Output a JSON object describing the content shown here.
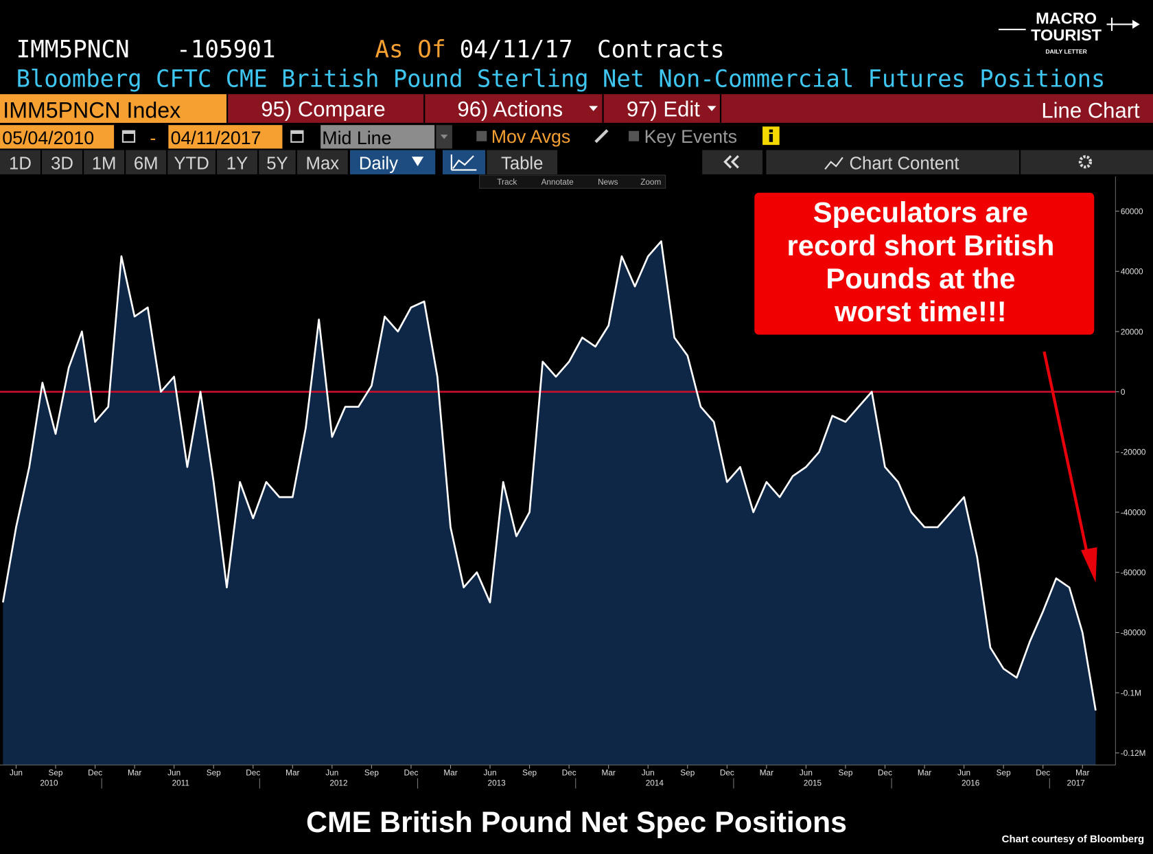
{
  "header": {
    "ticker": "IMM5PNCN",
    "last": -105901,
    "as_of_label": "As Of",
    "as_of": "04/11/17",
    "units": "Contracts",
    "description": "Bloomberg CFTC CME British Pound Sterling Net Non-Commercial Futures Positions"
  },
  "toolbar": {
    "security": "IMM5PNCN Index",
    "compare": "95) Compare",
    "actions": "96) Actions",
    "edit": "97) Edit",
    "chart_type": "Line Chart"
  },
  "controls": {
    "start_date": "05/04/2010",
    "dash": "-",
    "end_date": "04/11/2017",
    "line_mode": "Mid Line",
    "mov_avgs": "Mov Avgs",
    "key_events": "Key Events"
  },
  "periods": [
    "1D",
    "3D",
    "1M",
    "6M",
    "YTD",
    "1Y",
    "5Y",
    "Max"
  ],
  "frequency": "Daily",
  "table": "Table",
  "chart_content": "Chart Content",
  "tools": [
    "Track",
    "Annotate",
    "News",
    "Zoom"
  ],
  "logo": {
    "line1": "MACRO",
    "line2": "TOURIST",
    "line3": "DAILY LETTER"
  },
  "chart_data": {
    "type": "area",
    "title": "CME British Pound Net Spec Positions",
    "credit": "Chart courtesy of Bloomberg",
    "annotation": [
      "Speculators are",
      "record short British",
      "Pounds at the",
      "worst time!!!"
    ],
    "color": "#ffffff",
    "area_color": "#0e2747",
    "ref_line_color": "#c8102e",
    "x": [
      "2010-05",
      "2010-06",
      "2010-07",
      "2010-08",
      "2010-09",
      "2010-10",
      "2010-11",
      "2010-12",
      "2011-01",
      "2011-02",
      "2011-03",
      "2011-04",
      "2011-05",
      "2011-06",
      "2011-07",
      "2011-08",
      "2011-09",
      "2011-10",
      "2011-11",
      "2011-12",
      "2012-01",
      "2012-02",
      "2012-03",
      "2012-04",
      "2012-05",
      "2012-06",
      "2012-07",
      "2012-08",
      "2012-09",
      "2012-10",
      "2012-11",
      "2012-12",
      "2013-01",
      "2013-02",
      "2013-03",
      "2013-04",
      "2013-05",
      "2013-06",
      "2013-07",
      "2013-08",
      "2013-09",
      "2013-10",
      "2013-11",
      "2013-12",
      "2014-01",
      "2014-02",
      "2014-03",
      "2014-04",
      "2014-05",
      "2014-06",
      "2014-07",
      "2014-08",
      "2014-09",
      "2014-10",
      "2014-11",
      "2014-12",
      "2015-01",
      "2015-02",
      "2015-03",
      "2015-04",
      "2015-05",
      "2015-06",
      "2015-07",
      "2015-08",
      "2015-09",
      "2015-10",
      "2015-11",
      "2015-12",
      "2016-01",
      "2016-02",
      "2016-03",
      "2016-04",
      "2016-05",
      "2016-06",
      "2016-07",
      "2016-08",
      "2016-09",
      "2016-10",
      "2016-11",
      "2016-12",
      "2017-01",
      "2017-02",
      "2017-03",
      "2017-04"
    ],
    "values": [
      -70000,
      -45000,
      -25000,
      3000,
      -14000,
      8000,
      20000,
      -10000,
      -5000,
      45000,
      25000,
      28000,
      0,
      5000,
      -25000,
      0,
      -30000,
      -65000,
      -30000,
      -42000,
      -30000,
      -35000,
      -35000,
      -12000,
      24000,
      -15000,
      -5000,
      -5000,
      2000,
      25000,
      20000,
      28000,
      30000,
      5000,
      -45000,
      -65000,
      -60000,
      -70000,
      -30000,
      -48000,
      -40000,
      10000,
      5000,
      10000,
      18000,
      15000,
      22000,
      45000,
      35000,
      45000,
      50000,
      18000,
      12000,
      -5000,
      -10000,
      -30000,
      -25000,
      -40000,
      -30000,
      -35000,
      -28000,
      -25000,
      -20000,
      -8000,
      -10000,
      -5000,
      0,
      -25000,
      -30000,
      -40000,
      -45000,
      -45000,
      -40000,
      -35000,
      -55000,
      -85000,
      -92000,
      -95000,
      -83000,
      -73000,
      -62000,
      -65000,
      -80000,
      -105901
    ],
    "ylim": [
      -124000,
      71500
    ],
    "yticks": [
      60000,
      40000,
      20000,
      0,
      -20000,
      -40000,
      -60000,
      -80000,
      {
        "value": -100000,
        "label": "-0.1M"
      },
      {
        "value": -120000,
        "label": "-0.12M"
      }
    ],
    "xticks": [
      {
        "value": "2010-06",
        "label": "Jun"
      },
      {
        "value": "2010-09",
        "label": "Sep"
      },
      {
        "value": "2010-12",
        "label": "Dec"
      },
      {
        "value": "2011-03",
        "label": "Mar"
      },
      {
        "value": "2011-06",
        "label": "Jun"
      },
      {
        "value": "2011-09",
        "label": "Sep"
      },
      {
        "value": "2011-12",
        "label": "Dec"
      },
      {
        "value": "2012-03",
        "label": "Mar"
      },
      {
        "value": "2012-06",
        "label": "Jun"
      },
      {
        "value": "2012-09",
        "label": "Sep"
      },
      {
        "value": "2012-12",
        "label": "Dec"
      },
      {
        "value": "2013-03",
        "label": "Mar"
      },
      {
        "value": "2013-06",
        "label": "Jun"
      },
      {
        "value": "2013-09",
        "label": "Sep"
      },
      {
        "value": "2013-12",
        "label": "Dec"
      },
      {
        "value": "2014-03",
        "label": "Mar"
      },
      {
        "value": "2014-06",
        "label": "Jun"
      },
      {
        "value": "2014-09",
        "label": "Sep"
      },
      {
        "value": "2014-12",
        "label": "Dec"
      },
      {
        "value": "2015-03",
        "label": "Mar"
      },
      {
        "value": "2015-06",
        "label": "Jun"
      },
      {
        "value": "2015-09",
        "label": "Sep"
      },
      {
        "value": "2015-12",
        "label": "Dec"
      },
      {
        "value": "2016-03",
        "label": "Mar"
      },
      {
        "value": "2016-06",
        "label": "Jun"
      },
      {
        "value": "2016-09",
        "label": "Sep"
      },
      {
        "value": "2016-12",
        "label": "Dec"
      },
      {
        "value": "2017-03",
        "label": "Mar"
      }
    ],
    "years": [
      2010,
      2011,
      2012,
      2013,
      2014,
      2015,
      2016,
      2017
    ]
  }
}
